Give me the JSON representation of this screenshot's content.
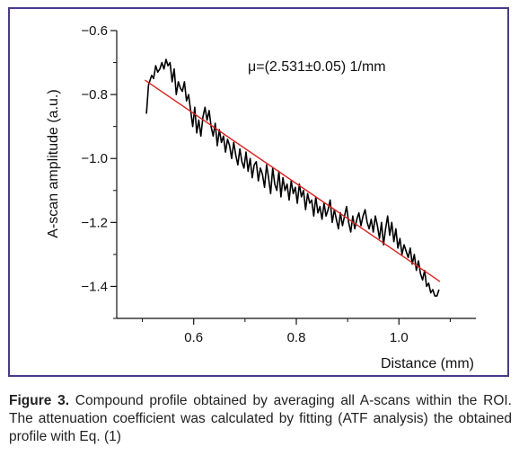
{
  "chart_data": {
    "type": "line",
    "title": "",
    "xlabel": "Distance (mm)",
    "ylabel": "A-scan amplitude (a.u.)",
    "xlim": [
      0.45,
      1.15
    ],
    "ylim": [
      -1.5,
      -0.6
    ],
    "x_ticks": [
      0.6,
      0.8,
      1.0
    ],
    "x_tick_labels": [
      "0.6",
      "0.8",
      "1.0"
    ],
    "y_ticks": [
      -0.6,
      -0.8,
      -1.0,
      -1.2,
      -1.4
    ],
    "y_tick_labels": [
      "−0.6",
      "−0.8",
      "−1.0",
      "−1.2",
      "−1.4"
    ],
    "annotation": "μ=(2.531±0.05) 1/mm",
    "series": [
      {
        "color": "#000000",
        "x": [
          0.508,
          0.512,
          0.518,
          0.522,
          0.526,
          0.53,
          0.534,
          0.538,
          0.542,
          0.546,
          0.55,
          0.554,
          0.558,
          0.562,
          0.566,
          0.57,
          0.574,
          0.578,
          0.582,
          0.586,
          0.59,
          0.594,
          0.598,
          0.602,
          0.606,
          0.61,
          0.614,
          0.618,
          0.622,
          0.626,
          0.63,
          0.634,
          0.638,
          0.642,
          0.646,
          0.65,
          0.654,
          0.658,
          0.662,
          0.666,
          0.67,
          0.674,
          0.678,
          0.682,
          0.686,
          0.69,
          0.694,
          0.698,
          0.702,
          0.706,
          0.71,
          0.714,
          0.718,
          0.722,
          0.726,
          0.73,
          0.734,
          0.738,
          0.742,
          0.746,
          0.75,
          0.754,
          0.758,
          0.762,
          0.766,
          0.77,
          0.774,
          0.778,
          0.782,
          0.786,
          0.79,
          0.794,
          0.798,
          0.802,
          0.806,
          0.81,
          0.814,
          0.818,
          0.822,
          0.826,
          0.83,
          0.834,
          0.838,
          0.842,
          0.846,
          0.85,
          0.854,
          0.858,
          0.862,
          0.866,
          0.87,
          0.874,
          0.878,
          0.882,
          0.886,
          0.89,
          0.894,
          0.898,
          0.902,
          0.906,
          0.91,
          0.914,
          0.918,
          0.922,
          0.926,
          0.93,
          0.934,
          0.938,
          0.942,
          0.946,
          0.95,
          0.954,
          0.958,
          0.962,
          0.966,
          0.97,
          0.974,
          0.978,
          0.982,
          0.986,
          0.99,
          0.994,
          0.998,
          1.002,
          1.006,
          1.01,
          1.014,
          1.018,
          1.022,
          1.026,
          1.03,
          1.034,
          1.038,
          1.042,
          1.046,
          1.05,
          1.054,
          1.058,
          1.062,
          1.066,
          1.07,
          1.074,
          1.078
        ],
        "y": [
          -0.86,
          -0.77,
          -0.74,
          -0.75,
          -0.71,
          -0.73,
          -0.72,
          -0.7,
          -0.72,
          -0.69,
          -0.71,
          -0.7,
          -0.76,
          -0.72,
          -0.8,
          -0.76,
          -0.78,
          -0.79,
          -0.76,
          -0.82,
          -0.8,
          -0.85,
          -0.9,
          -0.84,
          -0.92,
          -0.88,
          -0.93,
          -0.87,
          -0.84,
          -0.88,
          -0.85,
          -0.9,
          -0.93,
          -0.89,
          -0.96,
          -0.91,
          -0.95,
          -0.93,
          -0.98,
          -0.94,
          -0.96,
          -1.0,
          -0.95,
          -0.99,
          -1.02,
          -0.97,
          -1.01,
          -1.03,
          -0.98,
          -1.04,
          -1.0,
          -1.06,
          -1.02,
          -1.01,
          -1.07,
          -1.03,
          -1.05,
          -1.09,
          -1.02,
          -1.06,
          -1.11,
          -1.03,
          -1.08,
          -1.1,
          -1.04,
          -1.12,
          -1.06,
          -1.1,
          -1.08,
          -1.13,
          -1.07,
          -1.11,
          -1.09,
          -1.14,
          -1.08,
          -1.12,
          -1.1,
          -1.16,
          -1.11,
          -1.14,
          -1.13,
          -1.18,
          -1.12,
          -1.17,
          -1.15,
          -1.19,
          -1.14,
          -1.18,
          -1.16,
          -1.13,
          -1.2,
          -1.16,
          -1.19,
          -1.22,
          -1.17,
          -1.21,
          -1.18,
          -1.15,
          -1.2,
          -1.23,
          -1.18,
          -1.22,
          -1.19,
          -1.17,
          -1.21,
          -1.18,
          -1.16,
          -1.2,
          -1.22,
          -1.19,
          -1.23,
          -1.18,
          -1.21,
          -1.25,
          -1.2,
          -1.27,
          -1.22,
          -1.18,
          -1.24,
          -1.2,
          -1.26,
          -1.22,
          -1.28,
          -1.25,
          -1.3,
          -1.27,
          -1.29,
          -1.31,
          -1.28,
          -1.33,
          -1.3,
          -1.35,
          -1.32,
          -1.36,
          -1.38,
          -1.35,
          -1.4,
          -1.39,
          -1.42,
          -1.41,
          -1.43,
          -1.43,
          -1.41
        ]
      },
      {
        "color": "#d9231f",
        "x": [
          0.505,
          1.08
        ],
        "y": [
          -0.755,
          -1.385
        ]
      }
    ],
    "grid": false
  },
  "caption": {
    "label": "Figure 3.",
    "text": "Compound profile obtained by averaging all A-scans within the ROI. The attenuation coefficient was calculated by fitting (ATF analysis) the obtained profile with Eq. (1)"
  }
}
